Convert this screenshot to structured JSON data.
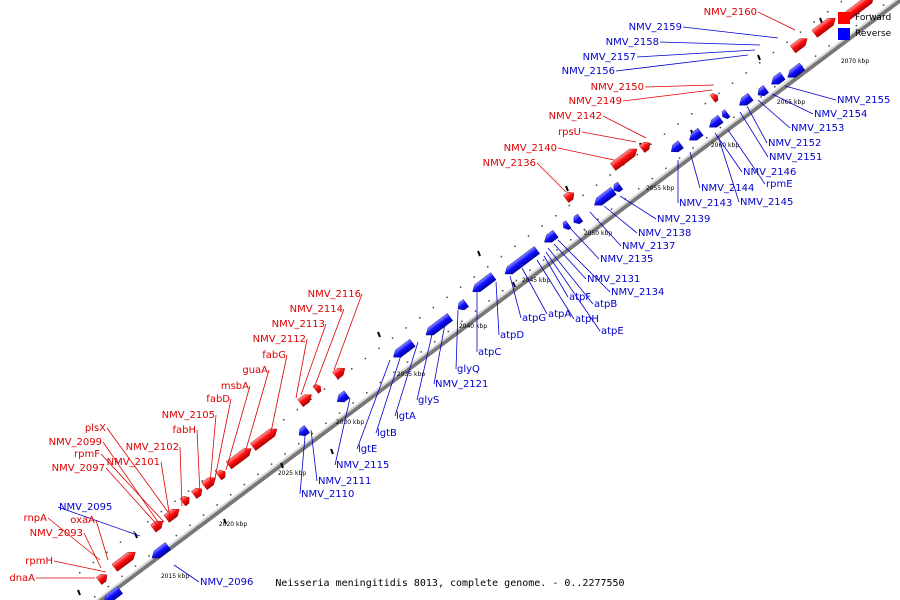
{
  "legend": {
    "forward_label": "Forward",
    "reverse_label": "Reverse",
    "forward_color": "#ff0000",
    "reverse_color": "#0000ff"
  },
  "caption": "Neisseria meningitidis 8013, complete genome. - 0..2277550",
  "axis_ticks": [
    {
      "label": "2015 kbp",
      "kbp": 2015
    },
    {
      "label": "2020 kbp",
      "kbp": 2020
    },
    {
      "label": "2025 kbp",
      "kbp": 2025
    },
    {
      "label": "2030 kbp",
      "kbp": 2030
    },
    {
      "label": "2035 kbp",
      "kbp": 2035
    },
    {
      "label": "2040 kbp",
      "kbp": 2040
    },
    {
      "label": "2045 kbp",
      "kbp": 2045
    },
    {
      "label": "2050 kbp",
      "kbp": 2050
    },
    {
      "label": "2055 kbp",
      "kbp": 2055
    },
    {
      "label": "2060 kbp",
      "kbp": 2060
    },
    {
      "label": "2065 kbp",
      "kbp": 2065
    },
    {
      "label": "2070 kbp",
      "kbp": 2070
    }
  ],
  "genes_forward": [
    {
      "name": "dnaA"
    },
    {
      "name": "rpmH"
    },
    {
      "name": "NMV_2093"
    },
    {
      "name": "rnpA"
    },
    {
      "name": "oxaA"
    },
    {
      "name": "NMV_2097"
    },
    {
      "name": "NMV_2101"
    },
    {
      "name": "rpmF"
    },
    {
      "name": "NMV_2099"
    },
    {
      "name": "NMV_2102"
    },
    {
      "name": "plsX"
    },
    {
      "name": "fabH"
    },
    {
      "name": "NMV_2105"
    },
    {
      "name": "fabD"
    },
    {
      "name": "msbA"
    },
    {
      "name": "guaA"
    },
    {
      "name": "fabG"
    },
    {
      "name": "NMV_2112"
    },
    {
      "name": "NMV_2113"
    },
    {
      "name": "NMV_2114"
    },
    {
      "name": "NMV_2116"
    },
    {
      "name": "NMV_2136"
    },
    {
      "name": "NMV_2140"
    },
    {
      "name": "rpsU"
    },
    {
      "name": "NMV_2142"
    },
    {
      "name": "NMV_2149"
    },
    {
      "name": "NMV_2150"
    },
    {
      "name": "NMV_2160"
    }
  ],
  "genes_reverse": [
    {
      "name": "NMV_2095"
    },
    {
      "name": "NMV_2096"
    },
    {
      "name": "NMV_2110"
    },
    {
      "name": "NMV_2111"
    },
    {
      "name": "NMV_2115"
    },
    {
      "name": "lgtE"
    },
    {
      "name": "lgtB"
    },
    {
      "name": "lgtA"
    },
    {
      "name": "glyS"
    },
    {
      "name": "NMV_2121"
    },
    {
      "name": "glyQ"
    },
    {
      "name": "atpC"
    },
    {
      "name": "atpD"
    },
    {
      "name": "atpG"
    },
    {
      "name": "atpA"
    },
    {
      "name": "atpH"
    },
    {
      "name": "atpE"
    },
    {
      "name": "atpB"
    },
    {
      "name": "atpF"
    },
    {
      "name": "NMV_2134"
    },
    {
      "name": "NMV_2131"
    },
    {
      "name": "NMV_2135"
    },
    {
      "name": "NMV_2137"
    },
    {
      "name": "NMV_2138"
    },
    {
      "name": "NMV_2139"
    },
    {
      "name": "NMV_2143"
    },
    {
      "name": "NMV_2144"
    },
    {
      "name": "NMV_2145"
    },
    {
      "name": "rpmE"
    },
    {
      "name": "NMV_2146"
    },
    {
      "name": "NMV_2151"
    },
    {
      "name": "NMV_2152"
    },
    {
      "name": "NMV_2153"
    },
    {
      "name": "NMV_2154"
    },
    {
      "name": "NMV_2155"
    },
    {
      "name": "NMV_2156"
    },
    {
      "name": "NMV_2157"
    },
    {
      "name": "NMV_2158"
    },
    {
      "name": "NMV_2159"
    }
  ]
}
